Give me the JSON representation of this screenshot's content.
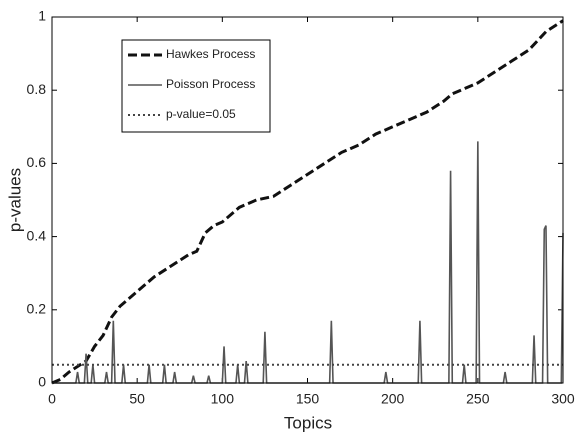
{
  "chart_data": {
    "type": "line",
    "xlabel": "Topics",
    "ylabel": "p-values",
    "xlim": [
      0,
      300
    ],
    "ylim": [
      0,
      1
    ],
    "xticks": [
      0,
      50,
      100,
      150,
      200,
      250,
      300
    ],
    "yticks": [
      0,
      0.2,
      0.4,
      0.6,
      0.8,
      1
    ],
    "series": [
      {
        "name": "Hawkes Process",
        "color": "#111111",
        "style": "dashed",
        "x": [
          0,
          5,
          10,
          20,
          25,
          30,
          35,
          40,
          50,
          60,
          70,
          80,
          85,
          90,
          95,
          100,
          110,
          120,
          130,
          140,
          150,
          160,
          170,
          180,
          190,
          200,
          210,
          220,
          230,
          235,
          240,
          250,
          260,
          270,
          280,
          290,
          300
        ],
        "values": [
          0,
          0.01,
          0.03,
          0.06,
          0.1,
          0.13,
          0.18,
          0.21,
          0.25,
          0.29,
          0.32,
          0.35,
          0.36,
          0.41,
          0.43,
          0.44,
          0.48,
          0.5,
          0.51,
          0.54,
          0.57,
          0.6,
          0.63,
          0.65,
          0.68,
          0.7,
          0.72,
          0.74,
          0.77,
          0.79,
          0.8,
          0.82,
          0.85,
          0.88,
          0.91,
          0.96,
          0.99
        ]
      },
      {
        "name": "Poisson Process",
        "color": "#555555",
        "style": "solid",
        "x": [
          0,
          14,
          15,
          16,
          19,
          20,
          21,
          23,
          24,
          25,
          31,
          32,
          33,
          35,
          36,
          37,
          41,
          42,
          43,
          56,
          57,
          58,
          65,
          66,
          67,
          71,
          72,
          73,
          82,
          83,
          84,
          91,
          92,
          93,
          100,
          101,
          102,
          108,
          109,
          110,
          113,
          114,
          115,
          124,
          125,
          126,
          163,
          164,
          165,
          195,
          196,
          197,
          215,
          216,
          217,
          233,
          234,
          235,
          241,
          242,
          243,
          249,
          250,
          251,
          265,
          266,
          267,
          282,
          283,
          284,
          288,
          289,
          290,
          291,
          298,
          299,
          300
        ],
        "values": [
          0,
          0,
          0.03,
          0,
          0,
          0.08,
          0,
          0,
          0.05,
          0,
          0,
          0.03,
          0,
          0,
          0.17,
          0,
          0,
          0.05,
          0,
          0,
          0.05,
          0,
          0,
          0.05,
          0,
          0,
          0.03,
          0,
          0,
          0.02,
          0,
          0,
          0.02,
          0,
          0,
          0.1,
          0,
          0,
          0.05,
          0,
          0,
          0.06,
          0,
          0,
          0.14,
          0,
          0,
          0.17,
          0,
          0,
          0.03,
          0,
          0,
          0.17,
          0,
          0,
          0.58,
          0,
          0,
          0.05,
          0,
          0,
          0.66,
          0,
          0,
          0.03,
          0,
          0,
          0.13,
          0,
          0,
          0.42,
          0.43,
          0,
          0,
          0,
          0.41
        ]
      },
      {
        "name": "p-value=0.05",
        "color": "#444444",
        "style": "dotted",
        "x": [
          0,
          300
        ],
        "values": [
          0.05,
          0.05
        ]
      }
    ]
  }
}
